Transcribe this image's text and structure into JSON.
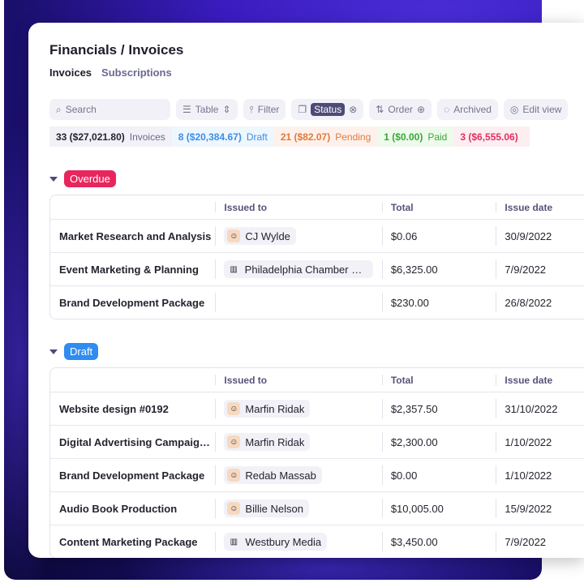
{
  "breadcrumb": {
    "parent": "Financials",
    "separator": "/",
    "current": "Invoices"
  },
  "tabs": [
    {
      "label": "Invoices",
      "active": true
    },
    {
      "label": "Subscriptions",
      "active": false
    }
  ],
  "toolbar": {
    "search_placeholder": "Search",
    "table": "Table",
    "filter": "Filter",
    "status": "Status",
    "order": "Order",
    "archived": "Archived",
    "edit_view": "Edit view"
  },
  "stats": [
    {
      "count": "33 ($27,021.80)",
      "label": "Invoices",
      "color": "#25232f",
      "bg": "#f1f1f7"
    },
    {
      "count": "8 ($20,384.67)",
      "label": "Draft",
      "color": "#3d8ee6",
      "bg": "#eef6fe"
    },
    {
      "count": "21 ($82.07)",
      "label": "Pending",
      "color": "#e07a3a",
      "bg": "#fef1ec"
    },
    {
      "count": "1 ($0.00)",
      "label": "Paid",
      "color": "#3aa83a",
      "bg": "#eefaec"
    },
    {
      "count": "3 ($6,555.06)",
      "label": "",
      "color": "#e0305f",
      "bg": "#fdeef2"
    }
  ],
  "columns": [
    "Issued to",
    "Total",
    "Issue date"
  ],
  "groups": [
    {
      "label": "Overdue",
      "color": "#e8265e",
      "rows": [
        {
          "name": "Market Research and Analysis",
          "issued_to": "CJ Wylde",
          "icon": "person",
          "total": "$0.06",
          "date": "30/9/2022"
        },
        {
          "name": "Event Marketing & Planning",
          "issued_to": "Philadelphia Chamber of …",
          "icon": "building",
          "total": "$6,325.00",
          "date": "7/9/2022"
        },
        {
          "name": "Brand Development Package",
          "issued_to": "",
          "icon": "",
          "total": "$230.00",
          "date": "26/8/2022"
        }
      ]
    },
    {
      "label": "Draft",
      "color": "#2f8cf0",
      "rows": [
        {
          "name": "Website design #0192",
          "issued_to": "Marfin Ridak",
          "icon": "person",
          "total": "$2,357.50",
          "date": "31/10/2022"
        },
        {
          "name": "Digital Advertising Campaign…",
          "issued_to": "Marfin Ridak",
          "icon": "person",
          "total": "$2,300.00",
          "date": "1/10/2022"
        },
        {
          "name": "Brand Development Package",
          "issued_to": "Redab Massab",
          "icon": "person",
          "total": "$0.00",
          "date": "1/10/2022"
        },
        {
          "name": "Audio Book Production",
          "issued_to": "Billie Nelson",
          "icon": "person",
          "total": "$10,005.00",
          "date": "15/9/2022"
        },
        {
          "name": "Content Marketing Package",
          "issued_to": "Westbury Media",
          "icon": "building",
          "total": "$3,450.00",
          "date": "7/9/2022"
        }
      ]
    }
  ]
}
